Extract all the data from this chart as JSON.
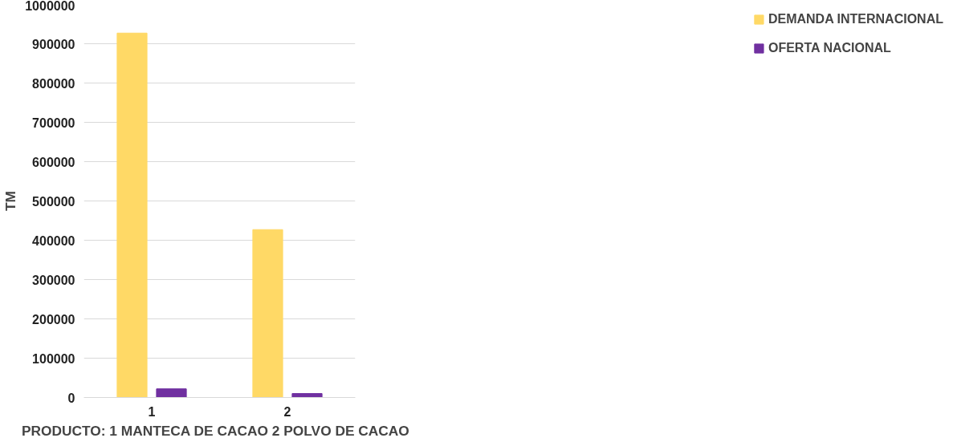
{
  "chart_data": {
    "type": "bar",
    "categories": [
      "1",
      "2"
    ],
    "xlabel": "PRODUCTO: 1 MANTECA DE CACAO   2 POLVO DE CACAO",
    "ylabel": "TM",
    "series": [
      {
        "name": "DEMANDA INTERNACIONAL",
        "color": "#ffd966",
        "values": [
          927000,
          427000
        ]
      },
      {
        "name": "OFERTA NACIONAL",
        "color": "#7030a0",
        "values": [
          22000,
          10000
        ]
      }
    ],
    "ylim": [
      0,
      1000000
    ],
    "yticks": [
      0,
      100000,
      200000,
      300000,
      400000,
      500000,
      600000,
      700000,
      800000,
      900000,
      1000000
    ],
    "grid": "y",
    "legend": "right"
  }
}
